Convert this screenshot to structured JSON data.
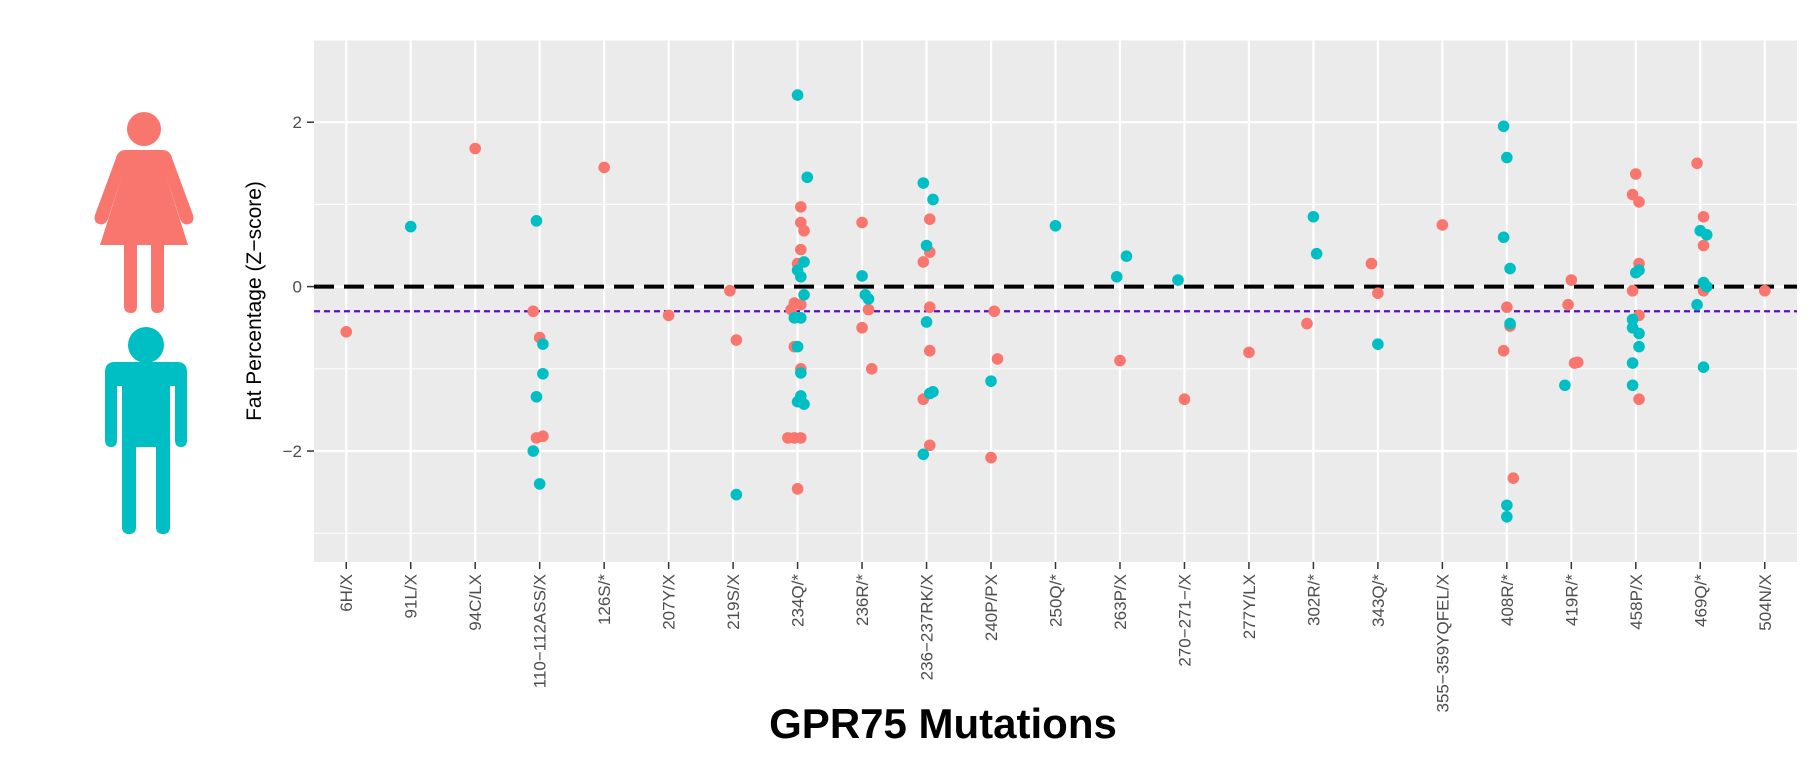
{
  "chart_data": {
    "type": "scatter",
    "title": "GPR75 Mutations",
    "xlabel": "GPR75 Mutations",
    "ylabel": "Fat Percentage (Z−score)",
    "ylim": [
      -3.35,
      3.0
    ],
    "yticks": [
      -2,
      0,
      2
    ],
    "ytick_labels": [
      "−2",
      "0",
      "2"
    ],
    "grid": true,
    "colors": {
      "female": "#f8766d",
      "male": "#00bfc4",
      "zero_line": "#000000",
      "mean_line": "#5b0fbf",
      "panel": "#ebebeb"
    },
    "categories": [
      "6H/X",
      "91L/X",
      "94C/LX",
      "110−112ASS/X",
      "126S/*",
      "207Y/X",
      "219S/X",
      "234Q/*",
      "236R/*",
      "236−237RK/X",
      "240P/PX",
      "250Q/*",
      "263P/X",
      "270−271−/X",
      "277Y/LX",
      "302R/*",
      "343Q/*",
      "355−359YQFEL/X",
      "408R/*",
      "419R/*",
      "458P/X",
      "469Q/*",
      "504N/X"
    ],
    "reference_lines": [
      {
        "name": "zero",
        "y": 0,
        "style": "dashed"
      },
      {
        "name": "mean",
        "y": -0.3,
        "style": "dotted"
      }
    ],
    "series": [
      {
        "name": "Female",
        "points": [
          {
            "cat": 0,
            "off": 0.0,
            "y": -0.55
          },
          {
            "cat": 2,
            "off": 0.0,
            "y": 1.68
          },
          {
            "cat": 3,
            "off": -0.1,
            "y": -0.3
          },
          {
            "cat": 3,
            "off": 0.0,
            "y": -0.62
          },
          {
            "cat": 3,
            "off": -0.05,
            "y": -1.84
          },
          {
            "cat": 3,
            "off": 0.05,
            "y": -1.82
          },
          {
            "cat": 4,
            "off": 0.0,
            "y": 1.45
          },
          {
            "cat": 5,
            "off": 0.0,
            "y": -0.35
          },
          {
            "cat": 6,
            "off": -0.05,
            "y": -0.05
          },
          {
            "cat": 6,
            "off": 0.05,
            "y": -0.65
          },
          {
            "cat": 7,
            "off": 0.05,
            "y": 0.97
          },
          {
            "cat": 7,
            "off": 0.05,
            "y": 0.78
          },
          {
            "cat": 7,
            "off": 0.1,
            "y": 0.68
          },
          {
            "cat": 7,
            "off": 0.05,
            "y": 0.45
          },
          {
            "cat": 7,
            "off": 0.0,
            "y": 0.28
          },
          {
            "cat": 7,
            "off": -0.05,
            "y": -0.2
          },
          {
            "cat": 7,
            "off": -0.1,
            "y": -0.28
          },
          {
            "cat": 7,
            "off": 0.05,
            "y": -0.22
          },
          {
            "cat": 7,
            "off": -0.05,
            "y": -0.73
          },
          {
            "cat": 7,
            "off": 0.05,
            "y": -1.0
          },
          {
            "cat": 7,
            "off": -0.15,
            "y": -1.84
          },
          {
            "cat": 7,
            "off": -0.05,
            "y": -1.84
          },
          {
            "cat": 7,
            "off": 0.05,
            "y": -1.84
          },
          {
            "cat": 7,
            "off": 0.0,
            "y": -2.46
          },
          {
            "cat": 8,
            "off": 0.0,
            "y": 0.78
          },
          {
            "cat": 8,
            "off": 0.1,
            "y": -0.28
          },
          {
            "cat": 8,
            "off": 0.0,
            "y": -0.5
          },
          {
            "cat": 8,
            "off": 0.15,
            "y": -1.0
          },
          {
            "cat": 9,
            "off": 0.05,
            "y": 0.82
          },
          {
            "cat": 9,
            "off": 0.05,
            "y": 0.42
          },
          {
            "cat": 9,
            "off": -0.05,
            "y": 0.3
          },
          {
            "cat": 9,
            "off": 0.05,
            "y": -0.25
          },
          {
            "cat": 9,
            "off": 0.05,
            "y": -0.78
          },
          {
            "cat": 9,
            "off": -0.05,
            "y": -1.37
          },
          {
            "cat": 9,
            "off": 0.05,
            "y": -1.93
          },
          {
            "cat": 10,
            "off": 0.05,
            "y": -0.3
          },
          {
            "cat": 10,
            "off": 0.1,
            "y": -0.88
          },
          {
            "cat": 10,
            "off": 0.0,
            "y": -2.08
          },
          {
            "cat": 12,
            "off": 0.0,
            "y": -0.9
          },
          {
            "cat": 13,
            "off": 0.0,
            "y": -1.37
          },
          {
            "cat": 14,
            "off": 0.0,
            "y": -0.8
          },
          {
            "cat": 15,
            "off": -0.1,
            "y": -0.45
          },
          {
            "cat": 16,
            "off": -0.1,
            "y": 0.28
          },
          {
            "cat": 16,
            "off": 0.0,
            "y": -0.08
          },
          {
            "cat": 17,
            "off": 0.0,
            "y": 0.75
          },
          {
            "cat": 18,
            "off": 0.0,
            "y": -0.25
          },
          {
            "cat": 18,
            "off": 0.05,
            "y": -0.48
          },
          {
            "cat": 18,
            "off": -0.05,
            "y": -0.78
          },
          {
            "cat": 18,
            "off": 0.1,
            "y": -2.33
          },
          {
            "cat": 19,
            "off": 0.0,
            "y": 0.08
          },
          {
            "cat": 19,
            "off": -0.05,
            "y": -0.22
          },
          {
            "cat": 19,
            "off": 0.05,
            "y": -0.93
          },
          {
            "cat": 19,
            "off": 0.1,
            "y": -0.92
          },
          {
            "cat": 20,
            "off": 0.0,
            "y": 1.37
          },
          {
            "cat": 20,
            "off": -0.05,
            "y": 1.12
          },
          {
            "cat": 20,
            "off": 0.05,
            "y": 1.03
          },
          {
            "cat": 20,
            "off": 0.05,
            "y": 0.28
          },
          {
            "cat": 20,
            "off": -0.05,
            "y": -0.05
          },
          {
            "cat": 20,
            "off": 0.05,
            "y": -0.35
          },
          {
            "cat": 20,
            "off": 0.05,
            "y": -1.37
          },
          {
            "cat": 21,
            "off": -0.05,
            "y": 1.5
          },
          {
            "cat": 21,
            "off": 0.05,
            "y": 0.85
          },
          {
            "cat": 21,
            "off": 0.05,
            "y": 0.5
          },
          {
            "cat": 21,
            "off": 0.05,
            "y": -0.05
          },
          {
            "cat": 22,
            "off": 0.0,
            "y": -0.05
          }
        ]
      },
      {
        "name": "Male",
        "points": [
          {
            "cat": 1,
            "off": 0.0,
            "y": 0.73
          },
          {
            "cat": 3,
            "off": -0.05,
            "y": 0.8
          },
          {
            "cat": 3,
            "off": 0.05,
            "y": -0.7
          },
          {
            "cat": 3,
            "off": 0.05,
            "y": -1.06
          },
          {
            "cat": 3,
            "off": -0.05,
            "y": -1.34
          },
          {
            "cat": 3,
            "off": -0.1,
            "y": -2.0
          },
          {
            "cat": 3,
            "off": 0.0,
            "y": -2.4
          },
          {
            "cat": 6,
            "off": 0.05,
            "y": -2.53
          },
          {
            "cat": 7,
            "off": 0.0,
            "y": 2.33
          },
          {
            "cat": 7,
            "off": 0.15,
            "y": 1.33
          },
          {
            "cat": 7,
            "off": 0.1,
            "y": 0.3
          },
          {
            "cat": 7,
            "off": 0.0,
            "y": 0.2
          },
          {
            "cat": 7,
            "off": 0.05,
            "y": 0.12
          },
          {
            "cat": 7,
            "off": 0.1,
            "y": -0.1
          },
          {
            "cat": 7,
            "off": -0.05,
            "y": -0.38
          },
          {
            "cat": 7,
            "off": 0.05,
            "y": -0.38
          },
          {
            "cat": 7,
            "off": 0.0,
            "y": -0.73
          },
          {
            "cat": 7,
            "off": 0.05,
            "y": -1.05
          },
          {
            "cat": 7,
            "off": 0.05,
            "y": -1.33
          },
          {
            "cat": 7,
            "off": 0.0,
            "y": -1.4
          },
          {
            "cat": 7,
            "off": 0.1,
            "y": -1.43
          },
          {
            "cat": 8,
            "off": 0.0,
            "y": 0.13
          },
          {
            "cat": 8,
            "off": 0.05,
            "y": -0.1
          },
          {
            "cat": 8,
            "off": 0.1,
            "y": -0.15
          },
          {
            "cat": 9,
            "off": -0.05,
            "y": 1.26
          },
          {
            "cat": 9,
            "off": 0.1,
            "y": 1.06
          },
          {
            "cat": 9,
            "off": 0.0,
            "y": 0.5
          },
          {
            "cat": 9,
            "off": 0.0,
            "y": -0.43
          },
          {
            "cat": 9,
            "off": 0.1,
            "y": -1.28
          },
          {
            "cat": 9,
            "off": 0.05,
            "y": -1.3
          },
          {
            "cat": 9,
            "off": -0.05,
            "y": -2.04
          },
          {
            "cat": 10,
            "off": 0.0,
            "y": -1.15
          },
          {
            "cat": 11,
            "off": 0.0,
            "y": 0.74
          },
          {
            "cat": 12,
            "off": 0.1,
            "y": 0.37
          },
          {
            "cat": 12,
            "off": -0.05,
            "y": 0.12
          },
          {
            "cat": 13,
            "off": -0.1,
            "y": 0.08
          },
          {
            "cat": 15,
            "off": 0.0,
            "y": 0.85
          },
          {
            "cat": 15,
            "off": 0.05,
            "y": 0.4
          },
          {
            "cat": 16,
            "off": 0.0,
            "y": -0.7
          },
          {
            "cat": 18,
            "off": -0.05,
            "y": 1.95
          },
          {
            "cat": 18,
            "off": 0.0,
            "y": 1.57
          },
          {
            "cat": 18,
            "off": -0.05,
            "y": 0.6
          },
          {
            "cat": 18,
            "off": 0.05,
            "y": 0.22
          },
          {
            "cat": 18,
            "off": 0.05,
            "y": -0.45
          },
          {
            "cat": 18,
            "off": 0.0,
            "y": -2.66
          },
          {
            "cat": 18,
            "off": 0.0,
            "y": -2.8
          },
          {
            "cat": 19,
            "off": -0.1,
            "y": -1.2
          },
          {
            "cat": 20,
            "off": 0.05,
            "y": 0.2
          },
          {
            "cat": 20,
            "off": 0.0,
            "y": 0.17
          },
          {
            "cat": 20,
            "off": -0.05,
            "y": -0.4
          },
          {
            "cat": 20,
            "off": -0.05,
            "y": -0.5
          },
          {
            "cat": 20,
            "off": 0.05,
            "y": -0.57
          },
          {
            "cat": 20,
            "off": 0.05,
            "y": -0.73
          },
          {
            "cat": 20,
            "off": -0.05,
            "y": -0.93
          },
          {
            "cat": 20,
            "off": -0.05,
            "y": -1.2
          },
          {
            "cat": 21,
            "off": 0.0,
            "y": 0.68
          },
          {
            "cat": 21,
            "off": 0.1,
            "y": 0.63
          },
          {
            "cat": 21,
            "off": 0.05,
            "y": 0.05
          },
          {
            "cat": 21,
            "off": 0.1,
            "y": 0.0
          },
          {
            "cat": 21,
            "off": -0.05,
            "y": -0.22
          },
          {
            "cat": 21,
            "off": 0.05,
            "y": -0.98
          }
        ]
      }
    ]
  }
}
